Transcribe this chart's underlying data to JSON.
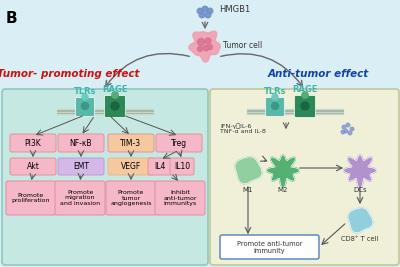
{
  "bg_color": "#daeef5",
  "title_label": "B",
  "hmgb1_label": "HMGB1",
  "tumor_cell_label": "Tumor cell",
  "tumor_promoting_label": "Tumor- promoting effect",
  "anti_tumor_label": "Anti-tumor effect",
  "left_box_color": "#c5e8e2",
  "right_box_color": "#f0f0d8",
  "left_box_border": "#90c8c0",
  "right_box_border": "#c0c898",
  "left_tlrs_label": "TLRs",
  "left_rage_label": "RAGE",
  "right_tlrs_label": "TLRs",
  "right_rage_label": "RAGE",
  "pathway_boxes_left": [
    "PI3K",
    "NF-κB",
    "TIM-3",
    "Treg"
  ],
  "pathway_colors_left": [
    "#f5b8c8",
    "#f5b8c8",
    "#f5c8a0",
    "#f5b8c8"
  ],
  "row2_labels": [
    "Akt",
    "EMT",
    "VEGF",
    "IL4",
    "IL10"
  ],
  "row2_colors": [
    "#f5b8c8",
    "#d4b8e8",
    "#f5c8a0",
    "#f5b8c8",
    "#f5b8c8"
  ],
  "outcome_labels": [
    "Promote\nproliferation",
    "Promote\nmigration\nand invasion",
    "Promote\ntumor\nangiogenesis",
    "Inhibit\nanti-tumor\nimmunitys"
  ],
  "outcome_color": "#f5b8c8",
  "outcome_border": "#e890a8",
  "cytokines_label": "IFN-γ　IL-6\nTNF-α and IL-8",
  "right_cells": [
    "M1",
    "M2",
    "DCs",
    "CD8⁺ T cell"
  ],
  "promote_label": "Promote anti-tumor\nimmunity",
  "promote_box_color": "#ffffff",
  "promote_box_border": "#5080c0",
  "arrow_color": "#555555",
  "tumor_promoting_color": "#cc1111",
  "anti_tumor_color": "#1144aa"
}
